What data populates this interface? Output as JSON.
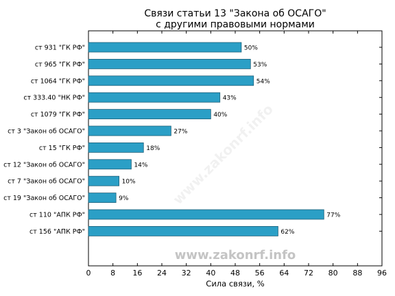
{
  "chart_data": {
    "type": "bar",
    "orientation": "horizontal",
    "title": "Связи статьи 13 \"Закона об ОСАГО\"",
    "subtitle": "с другими правовыми нормами",
    "xlabel": "Сила связи, %",
    "ylabel": "",
    "xlim": [
      0,
      96
    ],
    "xticks": [
      "0",
      "8",
      "16",
      "24",
      "32",
      "40",
      "48",
      "56",
      "64",
      "72",
      "80",
      "88",
      "96"
    ],
    "grid": false,
    "categories": [
      "ст 931 \"ГК РФ\"",
      "ст 965 \"ГК РФ\"",
      "ст 1064 \"ГК РФ\"",
      "ст 333.40 \"НК РФ\"",
      "ст 1079 \"ГК РФ\"",
      "ст 3 \"Закон об ОСАГО\"",
      "ст 15 \"ГК РФ\"",
      "ст 12 \"Закон об ОСАГО\"",
      "ст 7 \"Закон об ОСАГО\"",
      "ст 19 \"Закон об ОСАГО\"",
      "ст 110 \"АПК РФ\"",
      "ст 156 \"АПК РФ\""
    ],
    "values": [
      50,
      53,
      54,
      43,
      40,
      27,
      18,
      14,
      10,
      9,
      77,
      62
    ],
    "data_labels": [
      "50%",
      "53%",
      "54%",
      "43%",
      "40%",
      "27%",
      "18%",
      "14%",
      "10%",
      "9%",
      "77%",
      "62%"
    ],
    "bar_color": "#2b9fc6"
  },
  "watermark": "www.zakonrf.info"
}
